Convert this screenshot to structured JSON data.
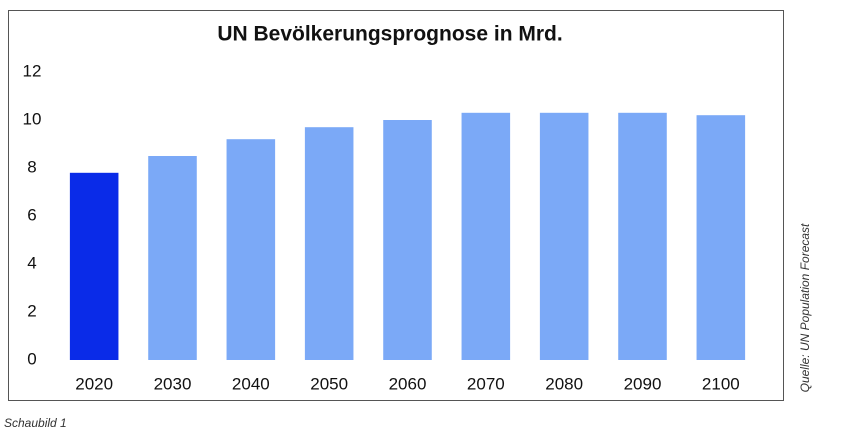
{
  "chart_data": {
    "type": "bar",
    "title": "UN Bevölkerungsprognose in Mrd.",
    "categories": [
      "2020",
      "2030",
      "2040",
      "2050",
      "2060",
      "2070",
      "2080",
      "2090",
      "2100"
    ],
    "values": [
      7.8,
      8.5,
      9.2,
      9.7,
      10.0,
      10.3,
      10.3,
      10.3,
      10.2
    ],
    "colors": [
      "#0a2be8",
      "#7ba9f7",
      "#7ba9f7",
      "#7ba9f7",
      "#7ba9f7",
      "#7ba9f7",
      "#7ba9f7",
      "#7ba9f7",
      "#7ba9f7"
    ],
    "ylim": [
      0,
      12
    ],
    "yticks": [
      0,
      2,
      4,
      6,
      8,
      10,
      12
    ],
    "grid": false,
    "source": "Quelle: UN Population Forecast",
    "caption": "Schaubild 1"
  }
}
